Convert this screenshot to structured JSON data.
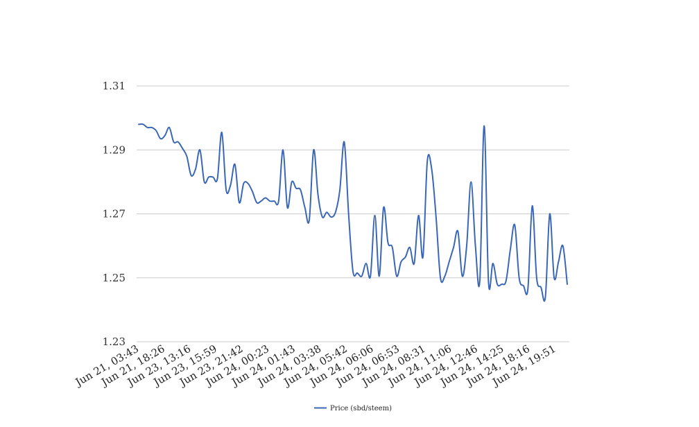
{
  "chart_data": {
    "type": "line",
    "title": "",
    "xlabel": "",
    "ylabel": "",
    "ylim": [
      1.23,
      1.31
    ],
    "yticks": [
      "1.23",
      "1.25",
      "1.27",
      "1.29",
      "1.31"
    ],
    "grid": true,
    "legend_position": "bottom",
    "x_tick_labels": [
      "Jun 21, 03:43",
      "Jun 21, 18:26",
      "Jun 23, 13:16",
      "Jun 23, 15:59",
      "Jun 23, 21:42",
      "Jun 24, 00:23",
      "Jun 24, 01:43",
      "Jun 24, 03:38",
      "Jun 24, 05:42",
      "Jun 24, 06:06",
      "Jun 24, 06:53",
      "Jun 24, 08:31",
      "Jun 24, 11:06",
      "Jun 24, 12:46",
      "Jun 24, 14:25",
      "Jun 24, 18:16",
      "Jun 24, 19:51"
    ],
    "series": [
      {
        "name": "Price (sbd/steem)",
        "color": "#3a66b6",
        "values": [
          1.298,
          1.298,
          1.297,
          1.297,
          1.296,
          1.2935,
          1.2945,
          1.297,
          1.2925,
          1.2925,
          1.2905,
          1.288,
          1.282,
          1.284,
          1.29,
          1.28,
          1.2815,
          1.2815,
          1.281,
          1.2955,
          1.2775,
          1.279,
          1.2855,
          1.2735,
          1.2795,
          1.2795,
          1.277,
          1.2735,
          1.274,
          1.275,
          1.274,
          1.274,
          1.274,
          1.29,
          1.272,
          1.28,
          1.278,
          1.2775,
          1.272,
          1.268,
          1.29,
          1.276,
          1.269,
          1.2705,
          1.269,
          1.2705,
          1.2775,
          1.2925,
          1.27,
          1.252,
          1.2515,
          1.2505,
          1.2545,
          1.2505,
          1.2695,
          1.2505,
          1.272,
          1.261,
          1.2595,
          1.2505,
          1.255,
          1.2565,
          1.2595,
          1.2545,
          1.2695,
          1.2565,
          1.2865,
          1.284,
          1.269,
          1.25,
          1.2505,
          1.255,
          1.2595,
          1.2645,
          1.2505,
          1.26,
          1.28,
          1.26,
          1.249,
          1.2975,
          1.2485,
          1.2545,
          1.248,
          1.248,
          1.249,
          1.259,
          1.2665,
          1.25,
          1.2475,
          1.2465,
          1.2725,
          1.25,
          1.247,
          1.244,
          1.27,
          1.25,
          1.255,
          1.26,
          1.248
        ]
      }
    ]
  }
}
